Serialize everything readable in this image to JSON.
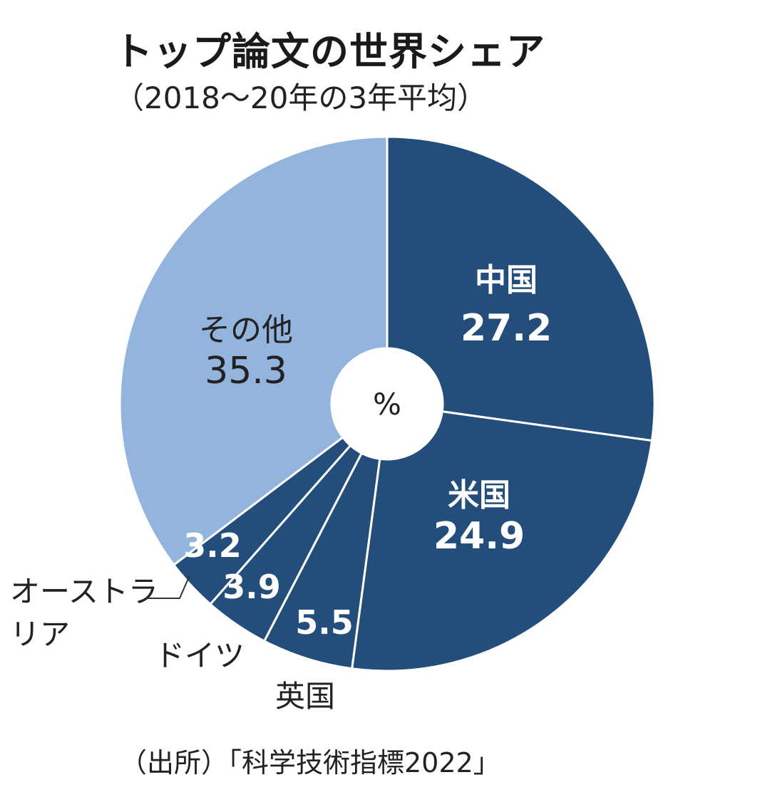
{
  "title": "トップ論文の世界シェア",
  "subtitle": "（2018〜20年の3年平均）",
  "source": "（出所）「科学技術指標2022」",
  "center_label": "%",
  "colors": {
    "dark": "#234d7a",
    "light": "#93b4dc",
    "inside_dark_text": "#ffffff",
    "inside_light_text": "#222222"
  },
  "chart_data": {
    "type": "pie",
    "donut": true,
    "unit": "%",
    "title": "トップ論文の世界シェア",
    "subtitle": "（2018〜20年の3年平均）",
    "start": "12 o'clock, clockwise",
    "categories": [
      "中国",
      "米国",
      "英国",
      "ドイツ",
      "オーストラリア",
      "その他"
    ],
    "values": [
      27.2,
      24.9,
      5.5,
      3.9,
      3.2,
      35.3
    ],
    "value_labels": [
      "27.2",
      "24.9",
      "5.5",
      "3.9",
      "3.2",
      "35.3"
    ]
  }
}
